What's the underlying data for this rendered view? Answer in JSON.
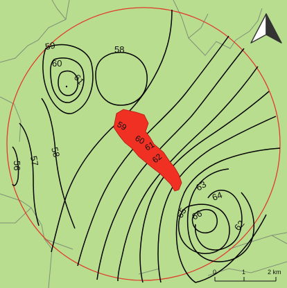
{
  "map": {
    "background_color": "#b9dd8f",
    "boundary_color": "#e03a2a",
    "region_fill_color": "#f03023",
    "contour_color": "#000000",
    "admin_border_color": "#7e8f76",
    "north_arrow_icon": "north-arrow-icon"
  },
  "contour_labels": {
    "l59_tl": "59",
    "l60_tl": "60",
    "l61_tl": "61",
    "l58_top": "58",
    "l56": "56",
    "l57": "57",
    "l58_left": "58",
    "l59_c": "59",
    "l60_c": "60",
    "l61_c": "61",
    "l62_c": "62",
    "l63": "63",
    "l64": "64",
    "l65": "65",
    "l66": "66",
    "l62_r": "62"
  },
  "scale_bar": {
    "tick_0": "0",
    "tick_1": "1",
    "tick_2": "2 km"
  }
}
